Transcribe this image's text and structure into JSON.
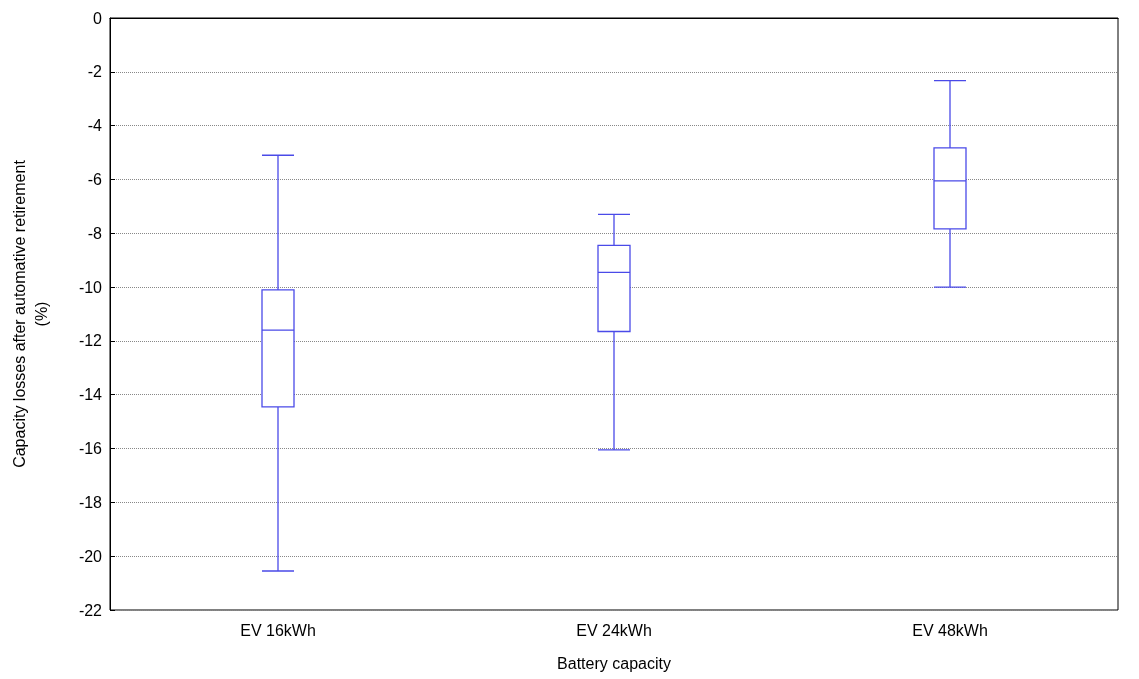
{
  "chart_data": {
    "type": "box",
    "xlabel": "Battery capacity",
    "ylabel": "Capacity losses after automative retirement\n(%)",
    "categories": [
      "EV 16kWh",
      "EV 24kWh",
      "EV 48kWh"
    ],
    "boxes": [
      {
        "low": -20.55,
        "q1": -14.45,
        "median": -11.6,
        "q3": -10.1,
        "high": -5.1
      },
      {
        "low": -16.05,
        "q1": -11.65,
        "median": -9.45,
        "q3": -8.45,
        "high": -7.3
      },
      {
        "low": -10.0,
        "q1": -7.84,
        "median": -6.05,
        "q3": -4.83,
        "high": -2.33
      }
    ],
    "color": "#4a4ae8",
    "ylim": [
      -22,
      0
    ],
    "yticks": [
      -22,
      -20,
      -18,
      -16,
      -14,
      -12,
      -10,
      -8,
      -6,
      -4,
      -2,
      0
    ],
    "grid": "y"
  }
}
